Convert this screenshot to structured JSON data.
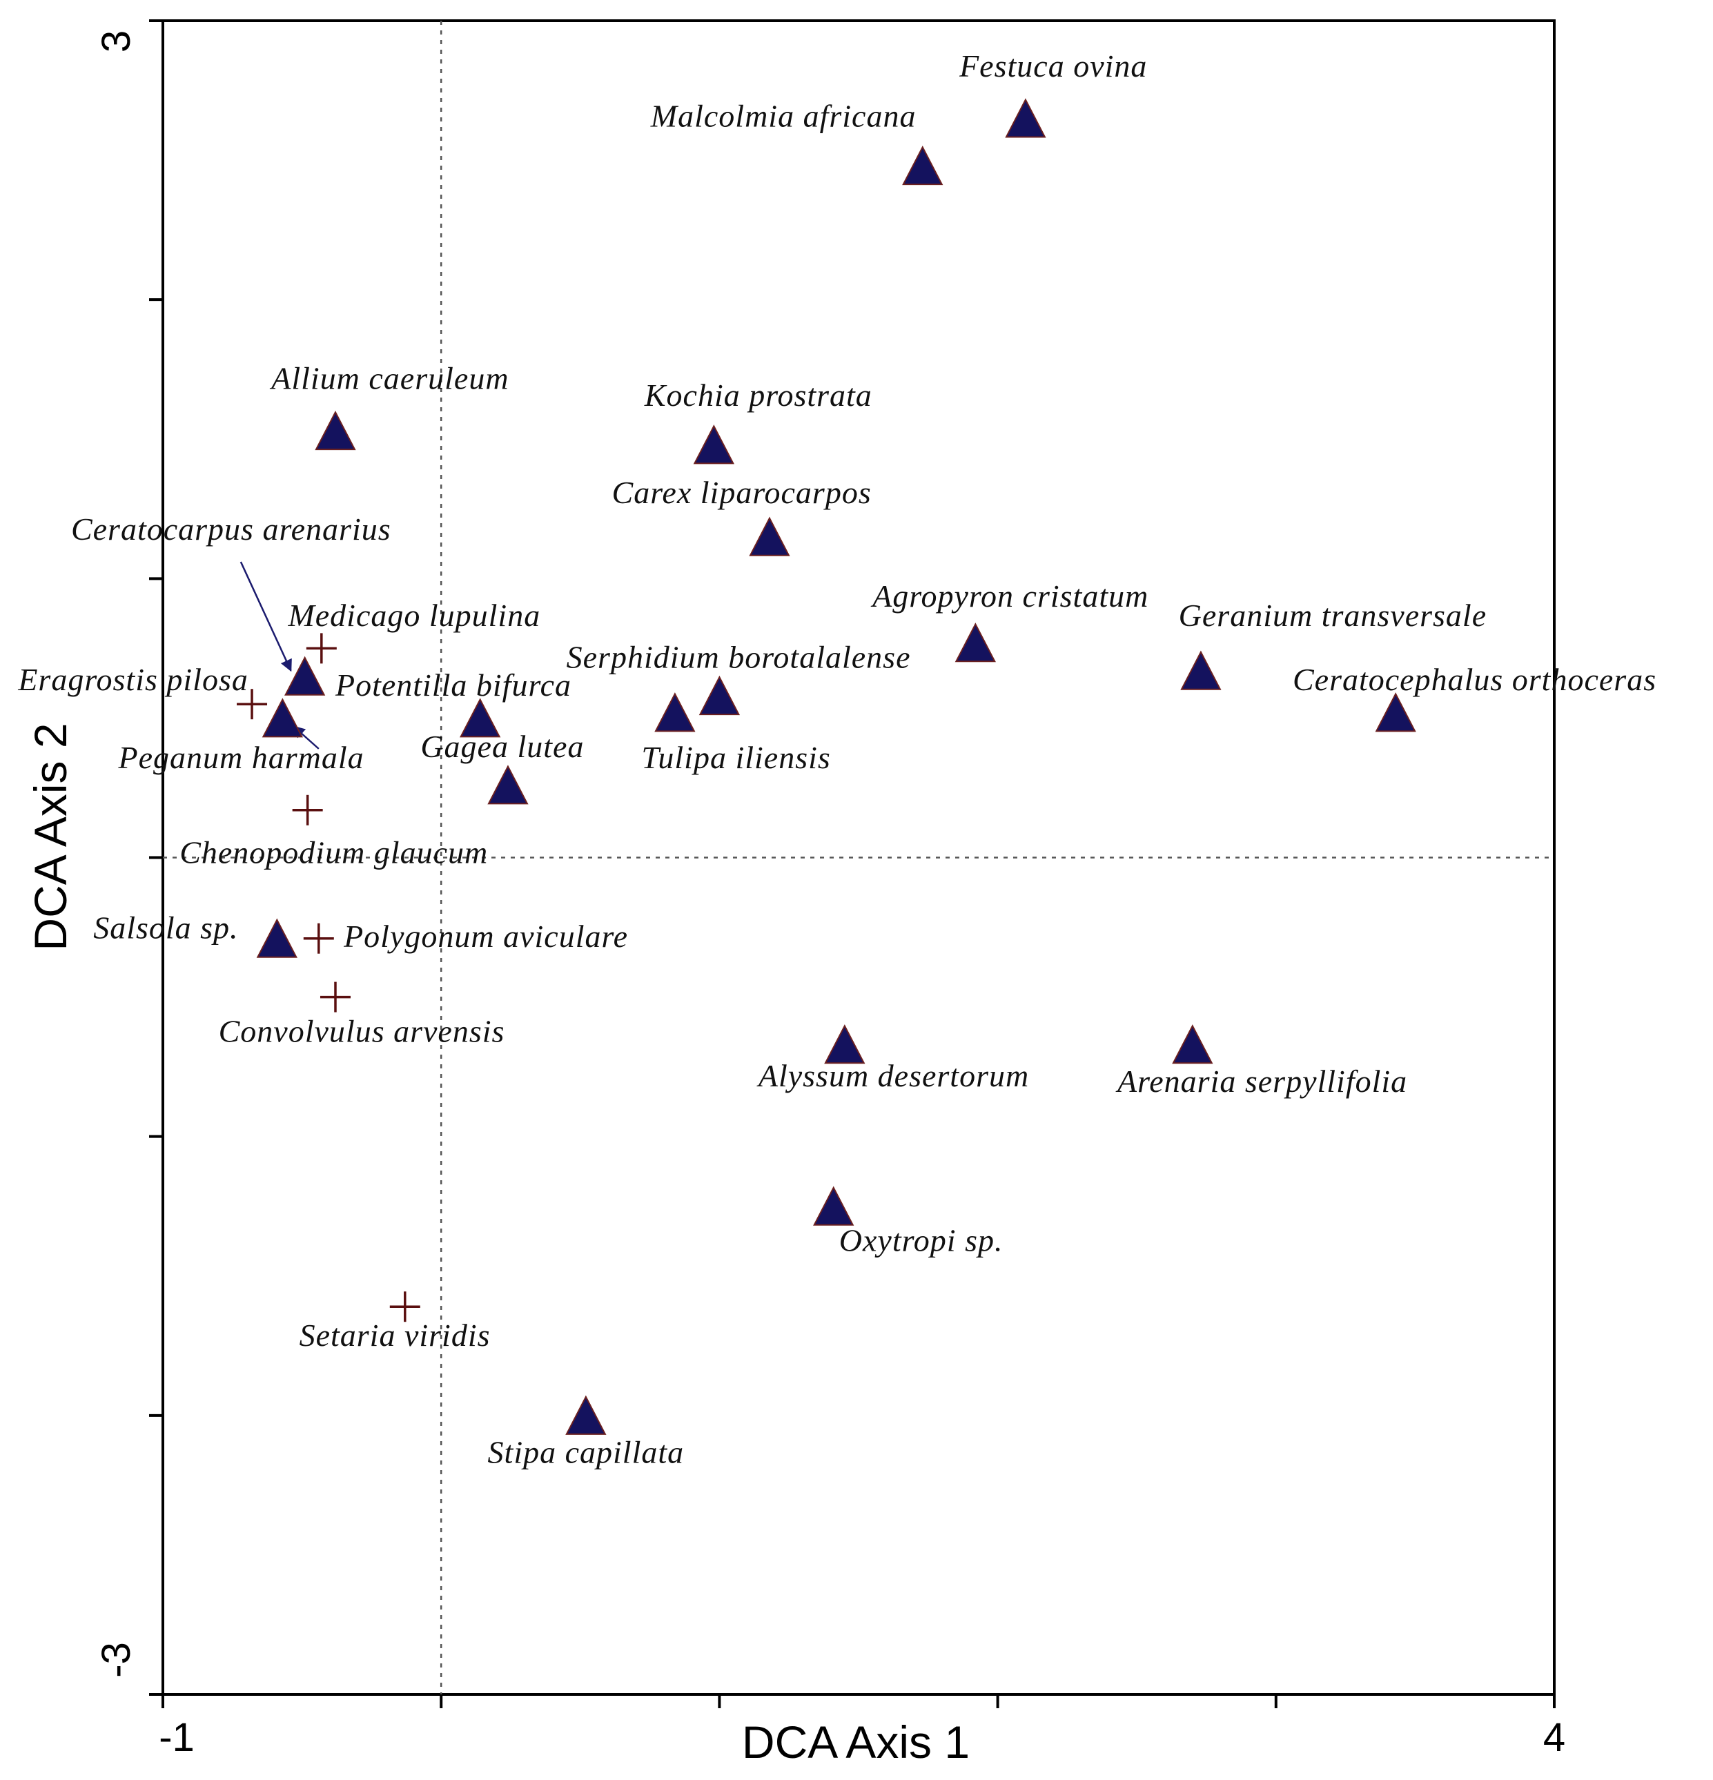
{
  "chart_data": {
    "type": "scatter",
    "xlabel": "DCA Axis 1",
    "ylabel": "DCA Axis 2",
    "xlim": [
      -1,
      4
    ],
    "ylim": [
      -3,
      3
    ],
    "x_tick_labels": [
      "-1",
      "4"
    ],
    "y_tick_labels": [
      "3",
      "-3"
    ],
    "reference_lines": {
      "x": 0,
      "y": 0,
      "style": "dotted"
    },
    "colors": {
      "triangle": "#14125e",
      "cross": "#5a0f0f",
      "arrow": "#1b1b6e"
    },
    "series": [
      {
        "marker": "triangle",
        "points": [
          {
            "label": "Festuca ovina",
            "x": 2.1,
            "y": 2.65
          },
          {
            "label": "Malcolmia africana",
            "x": 1.73,
            "y": 2.48
          },
          {
            "label": "Allium caeruleum",
            "x": -0.38,
            "y": 1.53
          },
          {
            "label": "Kochia prostrata",
            "x": 0.98,
            "y": 1.48
          },
          {
            "label": "Carex liparocarpos",
            "x": 1.18,
            "y": 1.15
          },
          {
            "label": "Agropyron cristatum",
            "x": 1.92,
            "y": 0.77
          },
          {
            "label": "Geranium transversale",
            "x": 2.73,
            "y": 0.67
          },
          {
            "label": "Ceratocephalus orthoceras",
            "x": 3.43,
            "y": 0.52
          },
          {
            "label": "Serphidium borotalalense",
            "x": 1.0,
            "y": 0.58
          },
          {
            "label": "Tulipa iliensis",
            "x": 0.84,
            "y": 0.52
          },
          {
            "label": "Potentilla bifurca",
            "x": 0.14,
            "y": 0.5
          },
          {
            "label": "Gagea lutea",
            "x": 0.24,
            "y": 0.26
          },
          {
            "label": "Ceratocarpus arenarius",
            "x": -0.49,
            "y": 0.65
          },
          {
            "label": "Peganum harmala",
            "x": -0.57,
            "y": 0.5
          },
          {
            "label": "Salsola sp.",
            "x": -0.59,
            "y": -0.29
          },
          {
            "label": "Alyssum desertorum",
            "x": 1.45,
            "y": -0.67
          },
          {
            "label": "Arenaria serpyllifolia",
            "x": 2.7,
            "y": -0.67
          },
          {
            "label": "Oxytropi sp.",
            "x": 1.41,
            "y": -1.25
          },
          {
            "label": "Stipa capillata",
            "x": 0.52,
            "y": -2.0
          }
        ]
      },
      {
        "marker": "cross",
        "points": [
          {
            "label": "Medicago lupulina",
            "x": -0.43,
            "y": 0.75
          },
          {
            "label": "Eragrostis pilosa",
            "x": -0.68,
            "y": 0.55
          },
          {
            "label": "Chenopodium glaucum",
            "x": -0.48,
            "y": 0.17
          },
          {
            "label": "Polygonum aviculare",
            "x": -0.44,
            "y": -0.29
          },
          {
            "label": "Convolvulus arvensis",
            "x": -0.38,
            "y": -0.5
          },
          {
            "label": "Setaria viridis",
            "x": -0.13,
            "y": -1.61
          }
        ]
      }
    ],
    "annotations": [
      {
        "text": "Festuca ovina",
        "x": 2.2,
        "y": 2.8,
        "anchor": "middle"
      },
      {
        "text": "Malcolmia africana",
        "x": 1.23,
        "y": 2.62,
        "anchor": "middle"
      },
      {
        "text": "Allium caeruleum",
        "x": -0.61,
        "y": 1.68,
        "anchor": "start"
      },
      {
        "text": "Kochia prostrata",
        "x": 1.14,
        "y": 1.62,
        "anchor": "middle"
      },
      {
        "text": "Carex liparocarpos",
        "x": 1.08,
        "y": 1.27,
        "anchor": "middle"
      },
      {
        "text": "Ceratocarpus arenarius",
        "x": -1.33,
        "y": 1.14,
        "anchor": "start"
      },
      {
        "text": "Agropyron cristatum",
        "x": 1.55,
        "y": 0.9,
        "anchor": "start"
      },
      {
        "text": "Medicago lupulina",
        "x": -0.55,
        "y": 0.83,
        "anchor": "start"
      },
      {
        "text": "Geranium transversale",
        "x": 2.65,
        "y": 0.83,
        "anchor": "start"
      },
      {
        "text": "Serphidium borotalalense",
        "x": 0.45,
        "y": 0.68,
        "anchor": "start"
      },
      {
        "text": "Ceratocephalus orthoceras",
        "x": 3.06,
        "y": 0.6,
        "anchor": "start"
      },
      {
        "text": "Eragrostis pilosa",
        "x": -1.52,
        "y": 0.6,
        "anchor": "start"
      },
      {
        "text": "Potentilla bifurca",
        "x": -0.38,
        "y": 0.58,
        "anchor": "start"
      },
      {
        "text": "Gagea lutea",
        "x": 0.22,
        "y": 0.36,
        "anchor": "middle"
      },
      {
        "text": "Tulipa iliensis",
        "x": 1.06,
        "y": 0.32,
        "anchor": "middle"
      },
      {
        "text": "Peganum harmala",
        "x": -1.16,
        "y": 0.32,
        "anchor": "start"
      },
      {
        "text": "Chenopodium glaucum",
        "x": -0.94,
        "y": -0.02,
        "anchor": "start"
      },
      {
        "text": "Salsola sp.",
        "x": -1.25,
        "y": -0.29,
        "anchor": "start"
      },
      {
        "text": "Polygonum aviculare",
        "x": -0.35,
        "y": -0.32,
        "anchor": "start"
      },
      {
        "text": "Convolvulus arvensis",
        "x": -0.8,
        "y": -0.66,
        "anchor": "start"
      },
      {
        "text": "Alyssum desertorum",
        "x": 1.14,
        "y": -0.82,
        "anchor": "start"
      },
      {
        "text": "Arenaria serpyllifolia",
        "x": 2.43,
        "y": -0.84,
        "anchor": "start"
      },
      {
        "text": "Oxytropi sp.",
        "x": 1.43,
        "y": -1.41,
        "anchor": "start"
      },
      {
        "text": "Setaria viridis",
        "x": -0.51,
        "y": -1.75,
        "anchor": "start"
      },
      {
        "text": "Stipa capillata",
        "x": 0.52,
        "y": -2.17,
        "anchor": "middle"
      }
    ],
    "arrows": [
      {
        "from_label": "Ceratocarpus arenarius",
        "from": [
          -0.72,
          1.06
        ],
        "to": [
          -0.54,
          0.67
        ]
      },
      {
        "from_label": "Peganum harmala",
        "from": [
          -0.44,
          0.39
        ],
        "to": [
          -0.53,
          0.47
        ]
      }
    ]
  }
}
